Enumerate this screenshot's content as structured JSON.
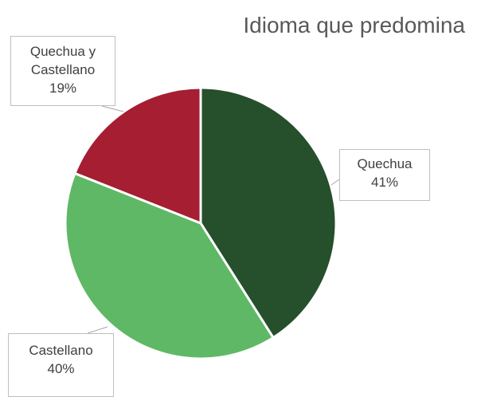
{
  "chart_data": {
    "type": "pie",
    "title": "Idioma que predomina",
    "categories": [
      "Quechua",
      "Castellano",
      "Quechua y Castellano"
    ],
    "values": [
      41,
      40,
      19
    ],
    "value_labels": [
      "41%",
      "40%",
      "19%"
    ],
    "colors": [
      "#264f2c",
      "#5fb865",
      "#a51e32"
    ]
  }
}
